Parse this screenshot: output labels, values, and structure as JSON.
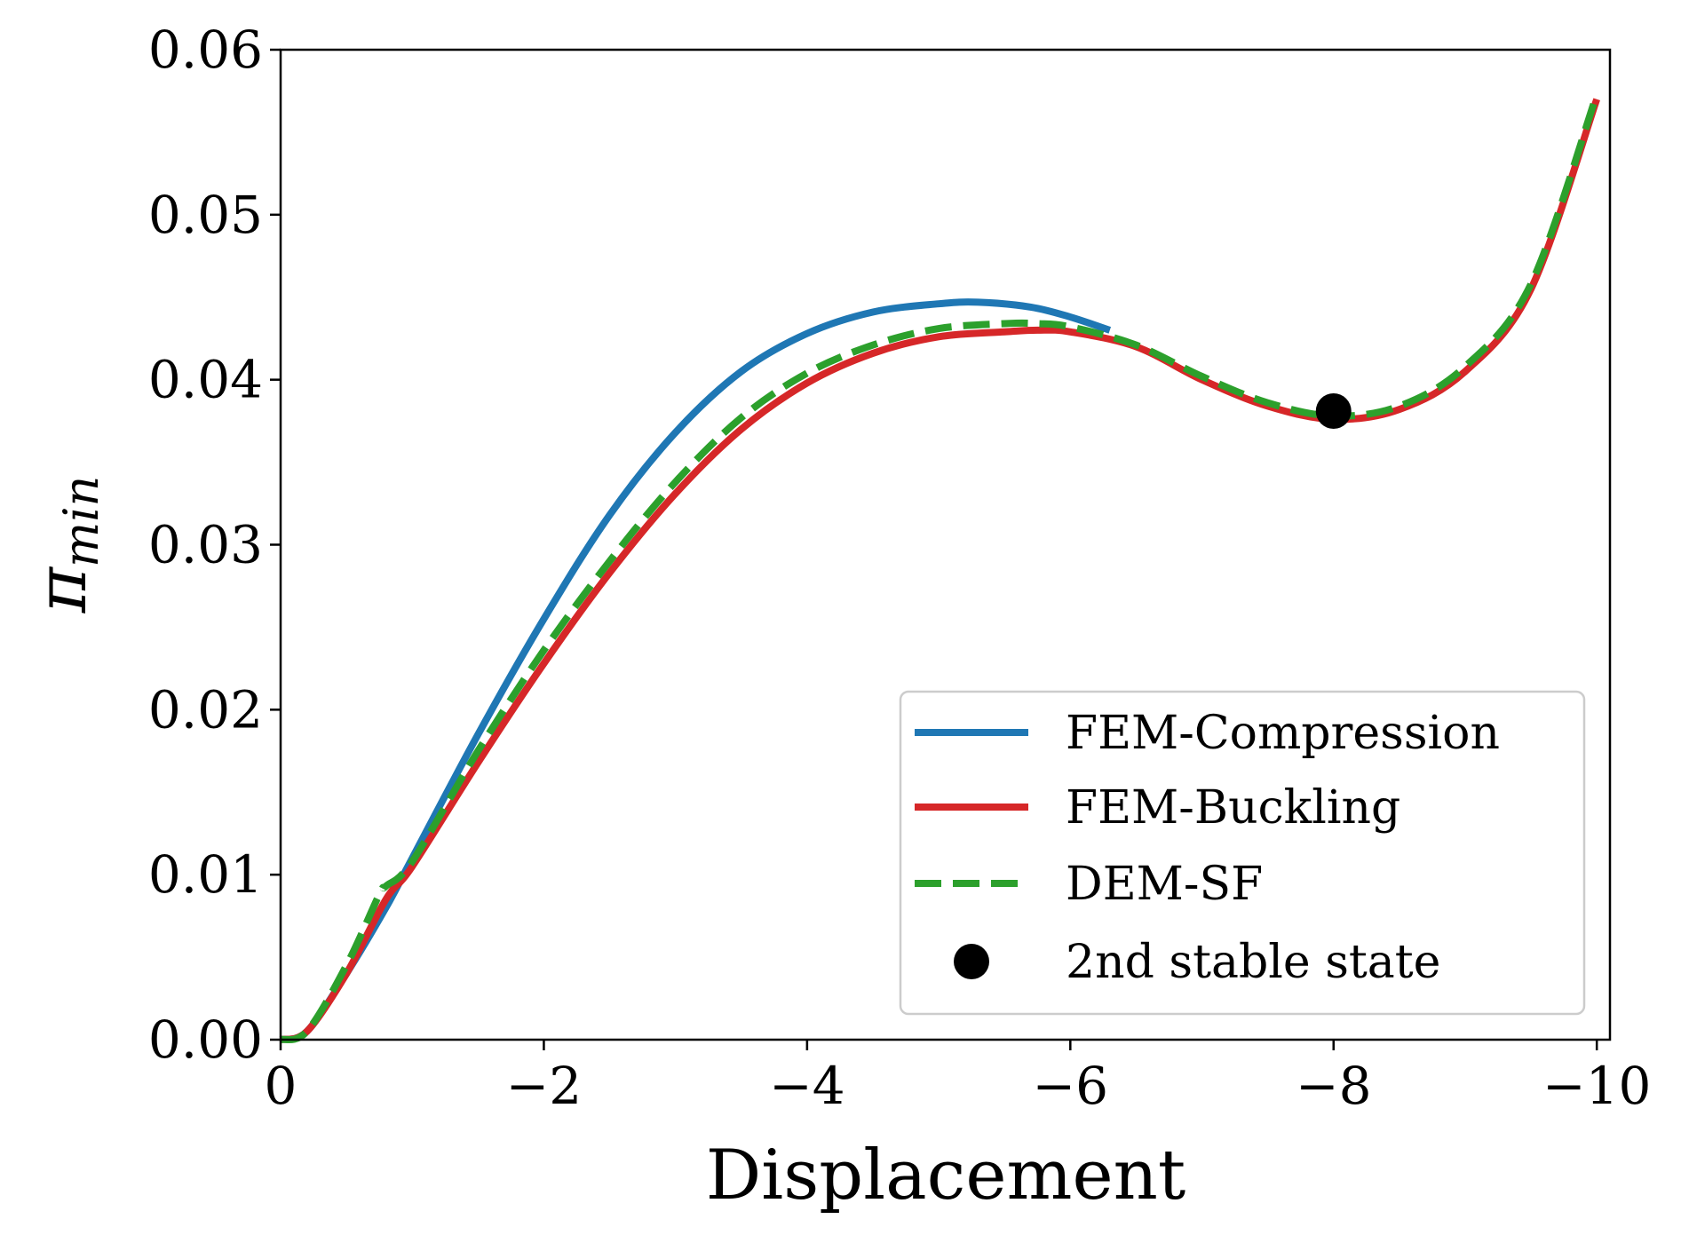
{
  "chart_data": {
    "type": "line",
    "xlabel": "Displacement",
    "ylabel": {
      "main": "π",
      "sub": "min"
    },
    "xlim": [
      0,
      -10.1
    ],
    "ylim": [
      0,
      0.06
    ],
    "xticks": [
      0,
      -2,
      -4,
      -6,
      -8,
      -10
    ],
    "xtick_labels": [
      "0",
      "−2",
      "−4",
      "−6",
      "−8",
      "−10"
    ],
    "yticks": [
      0,
      0.01,
      0.02,
      0.03,
      0.04,
      0.05,
      0.06
    ],
    "ytick_labels": [
      "0.00",
      "0.01",
      "0.02",
      "0.03",
      "0.04",
      "0.05",
      "0.06"
    ],
    "grid": false,
    "legend_position": "lower-right",
    "series": [
      {
        "name": "FEM-Compression",
        "color": "#1f77b4",
        "style": "solid",
        "x": [
          0,
          -0.2,
          -0.5,
          -0.8,
          -1.0,
          -1.5,
          -2.0,
          -2.5,
          -3.0,
          -3.5,
          -4.0,
          -4.5,
          -5.0,
          -5.3,
          -5.7,
          -6.0,
          -6.3
        ],
        "y": [
          0,
          0.0005,
          0.004,
          0.008,
          0.011,
          0.0185,
          0.0255,
          0.0318,
          0.0368,
          0.0405,
          0.0428,
          0.0441,
          0.0446,
          0.0447,
          0.0444,
          0.0438,
          0.043
        ]
      },
      {
        "name": "FEM-Buckling",
        "color": "#d62728",
        "style": "solid",
        "x": [
          0,
          -0.2,
          -0.5,
          -0.8,
          -1.0,
          -1.5,
          -2.0,
          -2.5,
          -3.0,
          -3.5,
          -4.0,
          -4.5,
          -5.0,
          -5.5,
          -5.75,
          -6.0,
          -6.5,
          -7.0,
          -7.5,
          -8.0,
          -8.5,
          -9.0,
          -9.5,
          -10.0
        ],
        "y": [
          0,
          0.0005,
          0.004,
          0.0085,
          0.0105,
          0.0168,
          0.0228,
          0.0283,
          0.0331,
          0.037,
          0.0398,
          0.0416,
          0.0426,
          0.0429,
          0.043,
          0.0429,
          0.042,
          0.04,
          0.0384,
          0.0376,
          0.0382,
          0.0405,
          0.0455,
          0.057
        ]
      },
      {
        "name": "DEM-SF",
        "color": "#2ca02c",
        "style": "dashed",
        "x": [
          0,
          -0.2,
          -0.5,
          -0.75,
          -0.8,
          -1.0,
          -1.5,
          -2.0,
          -2.5,
          -3.0,
          -3.5,
          -4.0,
          -4.5,
          -5.0,
          -5.5,
          -5.75,
          -6.0,
          -6.5,
          -7.0,
          -7.5,
          -8.0,
          -8.5,
          -9.0,
          -9.5,
          -10.0
        ],
        "y": [
          0,
          0.0005,
          0.0045,
          0.0088,
          0.0093,
          0.0108,
          0.0175,
          0.0236,
          0.029,
          0.0338,
          0.0377,
          0.0404,
          0.0421,
          0.0431,
          0.0434,
          0.0434,
          0.0432,
          0.0421,
          0.0402,
          0.0386,
          0.0378,
          0.0384,
          0.0408,
          0.0458,
          0.0573
        ]
      }
    ],
    "points": [
      {
        "name": "2nd stable state",
        "x": -8.0,
        "y": 0.0381,
        "color": "#000000"
      }
    ],
    "legend": [
      {
        "label": "FEM-Compression",
        "color": "#1f77b4",
        "style": "solid"
      },
      {
        "label": "FEM-Buckling",
        "color": "#d62728",
        "style": "solid"
      },
      {
        "label": "DEM-SF",
        "color": "#2ca02c",
        "style": "dashed"
      },
      {
        "label": "2nd stable state",
        "color": "#000000",
        "style": "marker"
      }
    ]
  }
}
